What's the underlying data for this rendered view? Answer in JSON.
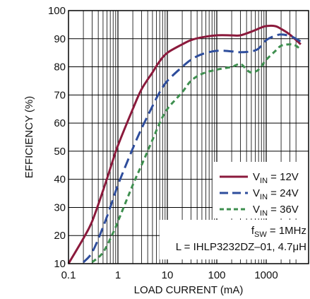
{
  "chart_data": {
    "type": "line",
    "xscale": "log",
    "xlim": [
      0.1,
      5000
    ],
    "ylim": [
      10,
      100
    ],
    "xlabel": "LOAD CURRENT (mA)",
    "ylabel": "EFFICIENCY (%)",
    "x_ticks": [
      "0.1",
      "1",
      "10",
      "100",
      "1000"
    ],
    "y_ticks": [
      "10",
      "20",
      "30",
      "40",
      "50",
      "60",
      "70",
      "80",
      "90",
      "100"
    ],
    "grid": true,
    "legend_placement": "center-right",
    "series": [
      {
        "name": "V_IN = 12V",
        "label_main": "V",
        "label_sub": "IN",
        "label_rest": " = 12V",
        "color": "#8b1a3c",
        "dash": "solid",
        "points": [
          [
            0.1,
            10
          ],
          [
            0.2,
            19
          ],
          [
            0.3,
            25
          ],
          [
            0.5,
            36
          ],
          [
            0.8,
            47
          ],
          [
            1,
            52
          ],
          [
            2,
            65
          ],
          [
            3,
            72
          ],
          [
            5,
            78
          ],
          [
            7,
            82
          ],
          [
            10,
            85
          ],
          [
            20,
            88
          ],
          [
            30,
            89.5
          ],
          [
            50,
            90.5
          ],
          [
            100,
            91.2
          ],
          [
            200,
            91.2
          ],
          [
            300,
            91.2
          ],
          [
            500,
            92.5
          ],
          [
            800,
            94
          ],
          [
            1000,
            94.5
          ],
          [
            1500,
            94.5
          ],
          [
            2000,
            93.5
          ],
          [
            3000,
            91.5
          ],
          [
            5000,
            88
          ]
        ]
      },
      {
        "name": "V_IN = 24V",
        "label_main": "V",
        "label_sub": "IN",
        "label_rest": " = 24V",
        "color": "#2e4d9c",
        "dash": "long",
        "points": [
          [
            0.2,
            10.5
          ],
          [
            0.3,
            14
          ],
          [
            0.5,
            23
          ],
          [
            0.8,
            33
          ],
          [
            1,
            38
          ],
          [
            2,
            51
          ],
          [
            3,
            58
          ],
          [
            5,
            66
          ],
          [
            7,
            71
          ],
          [
            10,
            75
          ],
          [
            20,
            80
          ],
          [
            30,
            82.5
          ],
          [
            50,
            84.5
          ],
          [
            100,
            85.7
          ],
          [
            200,
            85.5
          ],
          [
            300,
            85.2
          ],
          [
            500,
            85.5
          ],
          [
            700,
            86.5
          ],
          [
            1000,
            89.5
          ],
          [
            1500,
            91
          ],
          [
            2000,
            91.5
          ],
          [
            3000,
            91
          ],
          [
            4000,
            90
          ],
          [
            5000,
            89
          ]
        ]
      },
      {
        "name": "V_IN = 36V",
        "label_main": "V",
        "label_sub": "IN",
        "label_rest": " = 36V",
        "color": "#3e8f4f",
        "dash": "short",
        "points": [
          [
            0.3,
            10.5
          ],
          [
            0.5,
            14
          ],
          [
            0.8,
            21
          ],
          [
            1,
            25
          ],
          [
            2,
            38
          ],
          [
            3,
            45
          ],
          [
            5,
            54
          ],
          [
            7,
            60
          ],
          [
            10,
            65
          ],
          [
            20,
            71
          ],
          [
            30,
            75
          ],
          [
            50,
            77.5
          ],
          [
            100,
            79
          ],
          [
            200,
            80
          ],
          [
            300,
            81
          ],
          [
            400,
            79
          ],
          [
            500,
            78
          ],
          [
            700,
            79
          ],
          [
            1000,
            82.5
          ],
          [
            1500,
            85.5
          ],
          [
            2000,
            87.5
          ],
          [
            3000,
            88
          ],
          [
            4000,
            87.5
          ],
          [
            5000,
            86
          ]
        ]
      }
    ],
    "annotations": {
      "fsw_main": "f",
      "fsw_sub": "SW",
      "fsw_rest": " = 1MHz",
      "inductor": "L = IHLP3232DZ–01, 4.7μH"
    }
  }
}
